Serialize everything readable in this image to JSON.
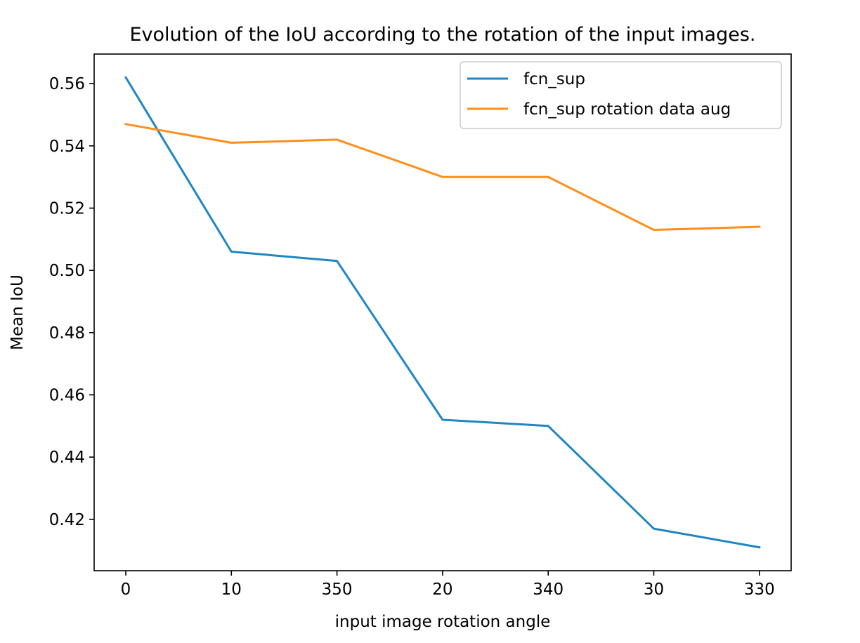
{
  "chart_data": {
    "type": "line",
    "title": "Evolution of the IoU according to the rotation of the input images.",
    "xlabel": "input image rotation angle",
    "ylabel": "Mean IoU",
    "categories": [
      "0",
      "10",
      "350",
      "20",
      "340",
      "30",
      "330"
    ],
    "yticks": [
      "0.42",
      "0.44",
      "0.46",
      "0.48",
      "0.50",
      "0.52",
      "0.54",
      "0.56"
    ],
    "ylim": [
      0.4035,
      0.5695
    ],
    "grid": false,
    "legend_position": "top-right",
    "series": [
      {
        "name": "fcn_sup",
        "color": "#1f86c0",
        "values": [
          0.562,
          0.506,
          0.503,
          0.452,
          0.45,
          0.417,
          0.411
        ]
      },
      {
        "name": "fcn_sup rotation data aug",
        "color": "#ff8e1a",
        "values": [
          0.547,
          0.541,
          0.542,
          0.53,
          0.53,
          0.513,
          0.514
        ]
      }
    ]
  }
}
